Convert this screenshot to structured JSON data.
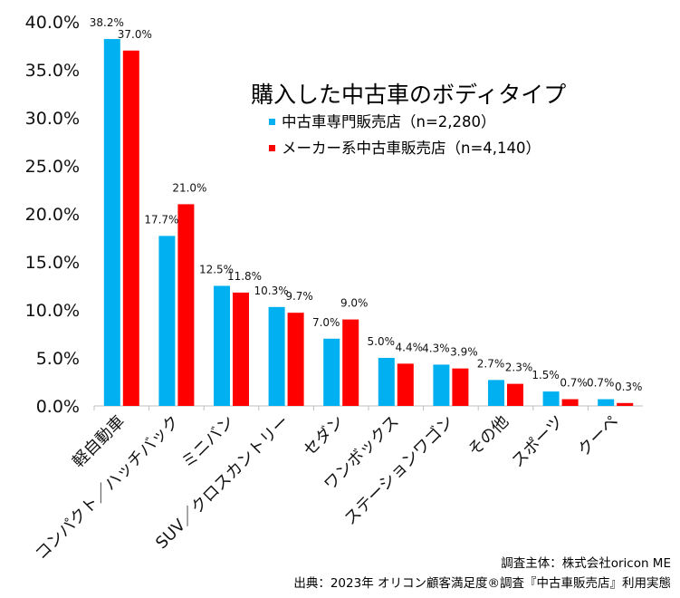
{
  "chart_data": {
    "type": "bar",
    "title": "購入した中古車のボディタイプ",
    "categories": [
      "軽自動車",
      "コンパクト／ハッチバック",
      "ミニバン",
      "SUV／クロスカントリー",
      "セダン",
      "ワンボックス",
      "ステーションワゴン",
      "その他",
      "スポーツ",
      "クーペ"
    ],
    "series": [
      {
        "name": "中古車専門販売店（n=2,280）",
        "color": "#00b0f0",
        "values": [
          38.2,
          17.7,
          12.5,
          10.3,
          7.0,
          5.0,
          4.3,
          2.7,
          1.5,
          0.7
        ],
        "labels": [
          "38.2%",
          "17.7%",
          "12.5%",
          "10.3%",
          "7.0%",
          "5.0%",
          "4.3%",
          "2.7%",
          "1.5%",
          "0.7%"
        ]
      },
      {
        "name": "メーカー系中古車販売店（n=4,140）",
        "color": "#ff0000",
        "values": [
          37.0,
          21.0,
          11.8,
          9.7,
          9.0,
          4.4,
          3.9,
          2.3,
          0.7,
          0.3
        ],
        "labels": [
          "37.0%",
          "21.0%",
          "11.8%",
          "9.7%",
          "9.0%",
          "4.4%",
          "3.9%",
          "2.3%",
          "0.7%",
          "0.3%"
        ]
      }
    ],
    "ylim": [
      0,
      40
    ],
    "yticks": [
      0,
      5,
      10,
      15,
      20,
      25,
      30,
      35,
      40
    ],
    "ytick_labels": [
      "0.0%",
      "5.0%",
      "10.0%",
      "15.0%",
      "20.0%",
      "25.0%",
      "30.0%",
      "35.0%",
      "40.0%"
    ],
    "xlabel": "",
    "ylabel": "",
    "grid": false,
    "legend_position": "top-right"
  },
  "footer": {
    "line1": "調査主体：株式会社oricon ME",
    "line2": "出典：2023年 オリコン顧客満足度®調査『中古車販売店』利用実態"
  }
}
